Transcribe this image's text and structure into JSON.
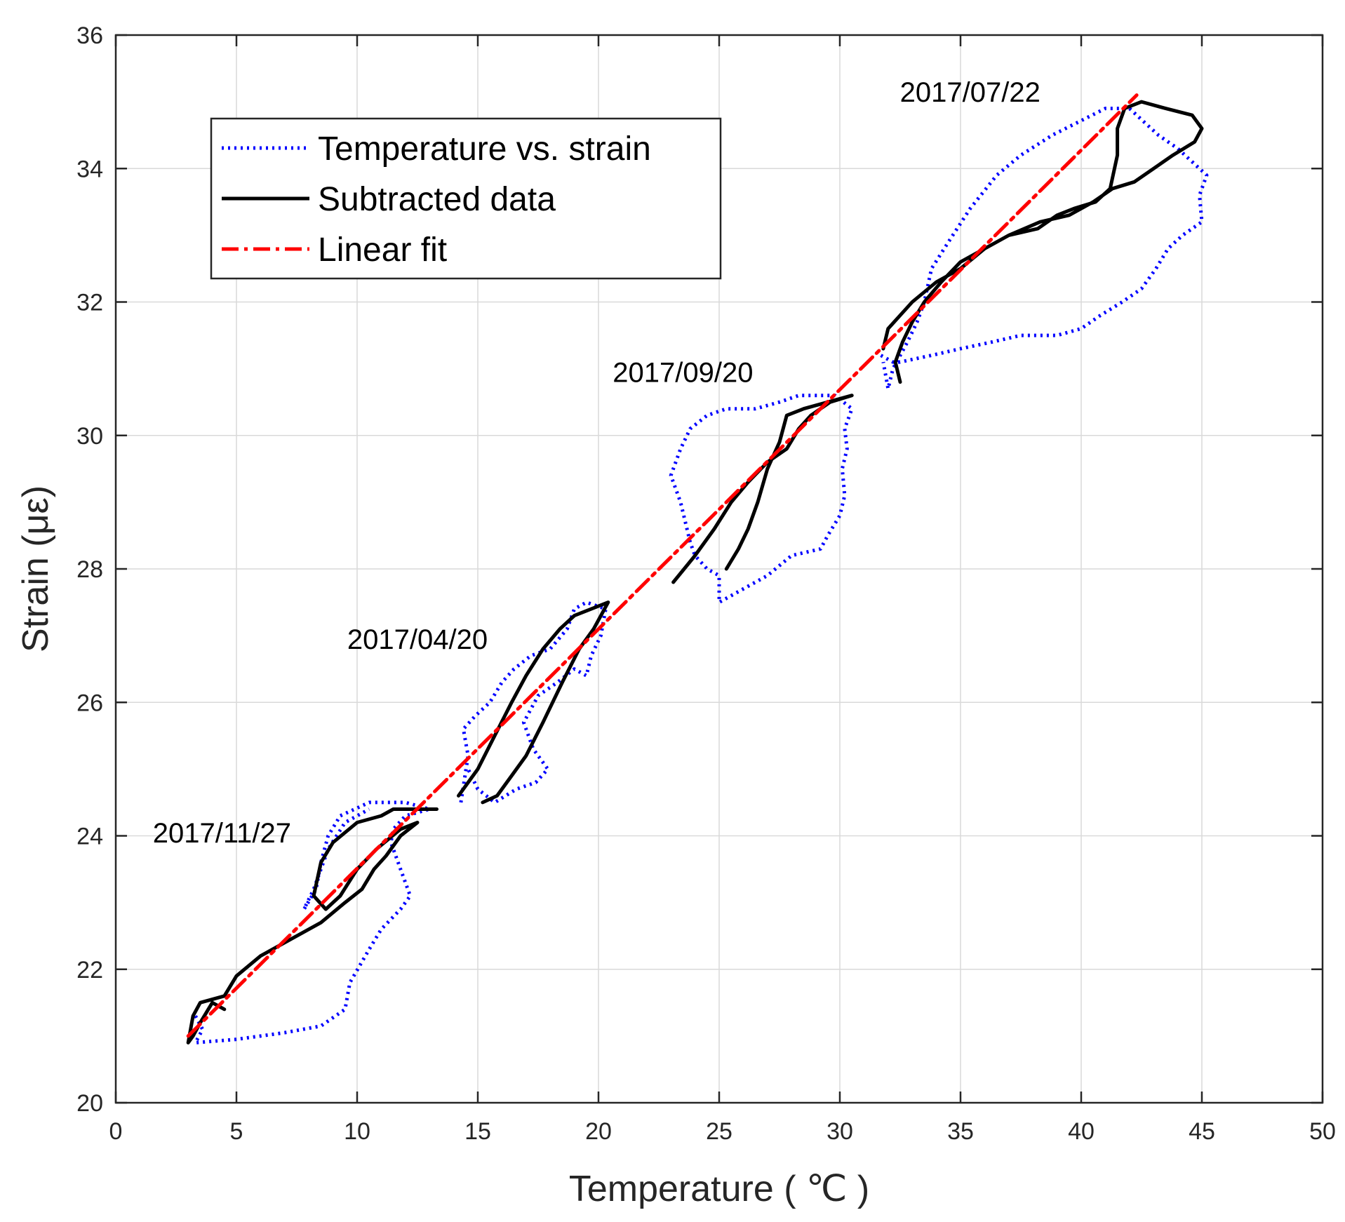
{
  "chart_data": {
    "type": "line",
    "title": "",
    "xlabel": "Temperature ( ℃ )",
    "ylabel": "Strain (με)",
    "xlim": [
      0,
      50
    ],
    "ylim": [
      20,
      36
    ],
    "xticks": [
      0,
      5,
      10,
      15,
      20,
      25,
      30,
      35,
      40,
      45,
      50
    ],
    "yticks": [
      20,
      22,
      24,
      26,
      28,
      30,
      32,
      34,
      36
    ],
    "grid": true,
    "legend_position": "top-left",
    "annotations": [
      {
        "text": "2017/07/22",
        "x": 35.4,
        "y": 35.0
      },
      {
        "text": "2017/09/20",
        "x": 23.5,
        "y": 30.8
      },
      {
        "text": "2017/04/20",
        "x": 12.5,
        "y": 26.8
      },
      {
        "text": "2017/11/27",
        "x": 4.4,
        "y": 23.9
      }
    ],
    "series": [
      {
        "name": "Temperature vs. strain",
        "color": "#0000ff",
        "style": "dotted",
        "segments": [
          [
            [
              3.3,
              21.3
            ],
            [
              3.6,
              21.1
            ],
            [
              3.3,
              20.9
            ],
            [
              5,
              20.95
            ],
            [
              7,
              21.05
            ],
            [
              8.5,
              21.15
            ],
            [
              9.5,
              21.4
            ],
            [
              9.7,
              21.8
            ],
            [
              10.5,
              22.3
            ],
            [
              11,
              22.6
            ],
            [
              11.8,
              22.9
            ],
            [
              12.2,
              23.1
            ],
            [
              11.8,
              23.5
            ],
            [
              11.4,
              23.9
            ],
            [
              11.5,
              24.1
            ],
            [
              12,
              24.3
            ],
            [
              13,
              24.4
            ],
            [
              12,
              24.5
            ],
            [
              10.5,
              24.5
            ],
            [
              9.3,
              24.3
            ],
            [
              8.8,
              24
            ],
            [
              8.5,
              23.6
            ],
            [
              8.3,
              23.2
            ],
            [
              7.8,
              22.9
            ],
            [
              8.2,
              23.2
            ],
            [
              8.8,
              23.8
            ],
            [
              9.5,
              24.2
            ],
            [
              10.5,
              24.4
            ]
          ],
          [
            [
              14.3,
              24.5
            ],
            [
              14.6,
              25.2
            ],
            [
              14.4,
              25.6
            ],
            [
              14.9,
              25.8
            ],
            [
              15.5,
              26
            ],
            [
              16,
              26.3
            ],
            [
              16.5,
              26.5
            ],
            [
              17.2,
              26.7
            ],
            [
              18,
              26.8
            ],
            [
              18.7,
              27.1
            ],
            [
              19,
              27.4
            ],
            [
              19.5,
              27.5
            ],
            [
              20.3,
              27.4
            ],
            [
              20.1,
              27
            ],
            [
              19.7,
              26.7
            ],
            [
              19.5,
              26.4
            ],
            [
              19,
              26.5
            ],
            [
              18.3,
              26.3
            ],
            [
              17.5,
              26.1
            ],
            [
              16.9,
              25.7
            ],
            [
              17.3,
              25.3
            ],
            [
              17.9,
              25
            ],
            [
              17.4,
              24.8
            ],
            [
              16.6,
              24.7
            ],
            [
              15.7,
              24.5
            ],
            [
              15,
              24.7
            ],
            [
              14.6,
              25
            ]
          ],
          [
            [
              23.8,
              28.4
            ],
            [
              23.4,
              29
            ],
            [
              23,
              29.4
            ],
            [
              23.4,
              29.8
            ],
            [
              23.8,
              30.1
            ],
            [
              24.5,
              30.3
            ],
            [
              25.3,
              30.4
            ],
            [
              26.5,
              30.4
            ],
            [
              27.5,
              30.5
            ],
            [
              28.3,
              30.6
            ],
            [
              29,
              30.6
            ],
            [
              29.8,
              30.6
            ],
            [
              30.5,
              30.4
            ],
            [
              30.2,
              30.1
            ],
            [
              30.3,
              29.8
            ],
            [
              30.1,
              29.5
            ],
            [
              30.2,
              29.1
            ],
            [
              30,
              28.8
            ],
            [
              29.5,
              28.5
            ],
            [
              29.2,
              28.3
            ],
            [
              28,
              28.2
            ],
            [
              27,
              27.9
            ],
            [
              26,
              27.7
            ],
            [
              25,
              27.5
            ],
            [
              25,
              27.9
            ],
            [
              24.5,
              28
            ],
            [
              24,
              28.2
            ],
            [
              23.8,
              28.4
            ]
          ],
          [
            [
              31.7,
              31.2
            ],
            [
              32.2,
              31.1
            ],
            [
              32.5,
              31.1
            ],
            [
              33.8,
              31.2
            ],
            [
              35,
              31.3
            ],
            [
              36.3,
              31.4
            ],
            [
              37.5,
              31.5
            ],
            [
              39,
              31.5
            ],
            [
              40,
              31.6
            ],
            [
              40.8,
              31.8
            ],
            [
              41.7,
              32
            ],
            [
              42.5,
              32.2
            ],
            [
              43.1,
              32.5
            ],
            [
              43.6,
              32.8
            ],
            [
              44.2,
              33
            ],
            [
              45,
              33.2
            ],
            [
              44.9,
              33.6
            ],
            [
              45.2,
              33.9
            ],
            [
              44.6,
              34.1
            ],
            [
              44,
              34.3
            ],
            [
              43.2,
              34.5
            ],
            [
              42.6,
              34.7
            ],
            [
              42,
              34.9
            ],
            [
              41,
              34.9
            ],
            [
              39.9,
              34.7
            ],
            [
              38.8,
              34.5
            ],
            [
              37.5,
              34.2
            ],
            [
              36.5,
              33.9
            ],
            [
              35.4,
              33.4
            ],
            [
              34.5,
              32.9
            ],
            [
              33.8,
              32.5
            ],
            [
              33.5,
              32
            ],
            [
              33.2,
              31.7
            ],
            [
              32.8,
              31.4
            ],
            [
              32.2,
              31
            ],
            [
              32,
              30.7
            ],
            [
              31.8,
              31.1
            ]
          ]
        ]
      },
      {
        "name": "Subtracted data",
        "color": "#000000",
        "style": "solid",
        "segments": [
          [
            [
              4.5,
              21.4
            ],
            [
              4,
              21.5
            ],
            [
              3.5,
              21.2
            ],
            [
              3.2,
              21
            ],
            [
              3,
              20.9
            ],
            [
              3.2,
              21.3
            ],
            [
              3.5,
              21.5
            ],
            [
              4.5,
              21.6
            ],
            [
              5,
              21.9
            ],
            [
              6,
              22.2
            ],
            [
              7.5,
              22.5
            ],
            [
              8.5,
              22.7
            ],
            [
              9.5,
              23
            ],
            [
              10.2,
              23.2
            ],
            [
              10.7,
              23.5
            ],
            [
              11.2,
              23.7
            ],
            [
              11.8,
              24
            ],
            [
              12.5,
              24.2
            ],
            [
              11.8,
              24.1
            ],
            [
              10.8,
              23.8
            ],
            [
              10,
              23.5
            ],
            [
              9.3,
              23.1
            ],
            [
              8.7,
              22.9
            ],
            [
              8.2,
              23.1
            ],
            [
              8.5,
              23.6
            ],
            [
              9,
              23.9
            ],
            [
              10,
              24.2
            ],
            [
              11,
              24.3
            ],
            [
              11.5,
              24.4
            ],
            [
              12.5,
              24.4
            ],
            [
              13.3,
              24.4
            ]
          ],
          [
            [
              14.2,
              24.6
            ],
            [
              15,
              25
            ],
            [
              15.7,
              25.5
            ],
            [
              16.4,
              26
            ],
            [
              17,
              26.4
            ],
            [
              17.7,
              26.8
            ],
            [
              18.4,
              27.1
            ],
            [
              19,
              27.3
            ],
            [
              19.7,
              27.4
            ],
            [
              20.4,
              27.5
            ],
            [
              19.8,
              27.1
            ],
            [
              19.2,
              26.8
            ],
            [
              18.5,
              26.3
            ],
            [
              17.7,
              25.7
            ],
            [
              17,
              25.2
            ],
            [
              16.4,
              24.9
            ],
            [
              15.8,
              24.6
            ],
            [
              15.2,
              24.5
            ]
          ],
          [
            [
              23.1,
              27.8
            ],
            [
              24,
              28.2
            ],
            [
              24.8,
              28.6
            ],
            [
              25.5,
              29
            ],
            [
              26.2,
              29.3
            ],
            [
              27,
              29.6
            ],
            [
              27.8,
              29.8
            ],
            [
              28.3,
              30.1
            ],
            [
              28.8,
              30.3
            ],
            [
              29.6,
              30.5
            ],
            [
              30.5,
              30.6
            ],
            [
              29.5,
              30.5
            ],
            [
              28.5,
              30.4
            ],
            [
              27.8,
              30.3
            ],
            [
              27.5,
              29.9
            ],
            [
              27,
              29.5
            ],
            [
              26.6,
              29
            ],
            [
              26.2,
              28.6
            ],
            [
              25.8,
              28.3
            ],
            [
              25.3,
              28
            ]
          ],
          [
            [
              31.8,
              31.3
            ],
            [
              32,
              31.6
            ],
            [
              32.5,
              31.8
            ],
            [
              33,
              32
            ],
            [
              34,
              32.3
            ],
            [
              35,
              32.5
            ],
            [
              36,
              32.8
            ],
            [
              37,
              33
            ],
            [
              38.3,
              33.2
            ],
            [
              39.5,
              33.3
            ],
            [
              40.5,
              33.5
            ],
            [
              41.3,
              33.7
            ],
            [
              42.2,
              33.8
            ],
            [
              43,
              34
            ],
            [
              43.8,
              34.2
            ],
            [
              44.7,
              34.4
            ],
            [
              45,
              34.6
            ],
            [
              44.6,
              34.8
            ],
            [
              43.5,
              34.9
            ],
            [
              42.5,
              35
            ],
            [
              41.8,
              34.9
            ],
            [
              41.5,
              34.6
            ],
            [
              41.5,
              34.2
            ],
            [
              41.2,
              33.7
            ],
            [
              40.6,
              33.5
            ],
            [
              39.7,
              33.4
            ],
            [
              39,
              33.3
            ],
            [
              38.2,
              33.1
            ],
            [
              37,
              33
            ],
            [
              36,
              32.8
            ],
            [
              35,
              32.6
            ],
            [
              34.2,
              32.3
            ],
            [
              33.5,
              32
            ],
            [
              33,
              31.7
            ],
            [
              32.6,
              31.4
            ],
            [
              32.3,
              31.1
            ],
            [
              32.5,
              30.8
            ]
          ]
        ]
      },
      {
        "name": "Linear fit",
        "color": "#ff0000",
        "style": "dashdot",
        "segments": [
          [
            [
              3,
              21
            ],
            [
              42.3,
              35.1
            ]
          ]
        ]
      }
    ]
  }
}
